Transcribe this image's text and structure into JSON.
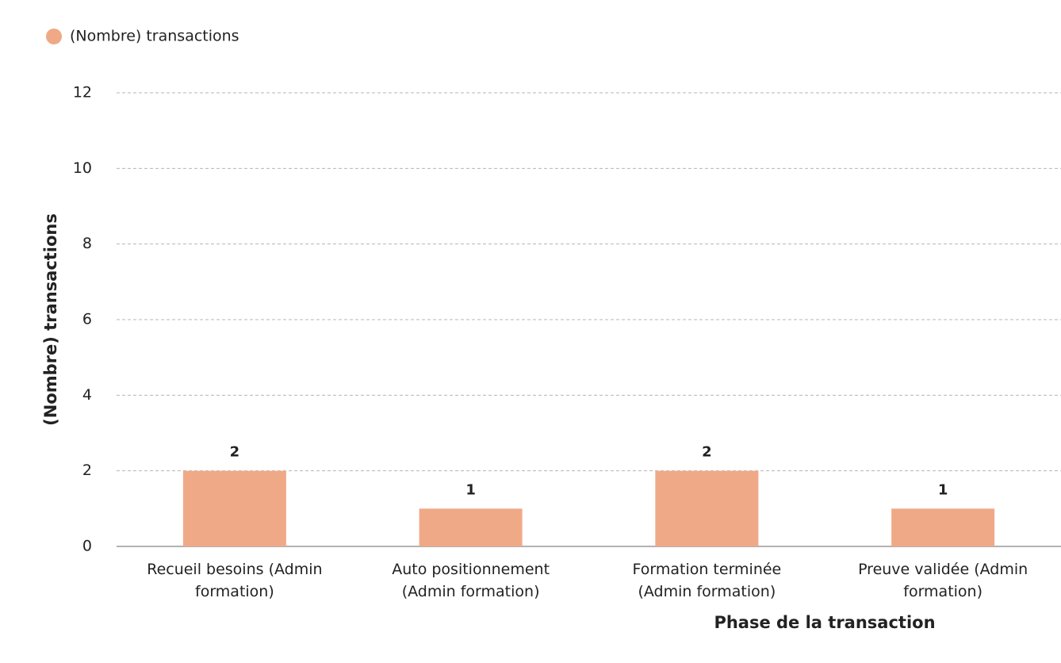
{
  "chart_data": {
    "type": "bar",
    "categories": [
      "Recueil besoins (Admin formation)",
      "Auto positionnement (Admin formation)",
      "Formation terminée (Admin formation)",
      "Preuve validée (Admin formation)"
    ],
    "series": [
      {
        "name": "(Nombre) transactions",
        "color": "#f0a987",
        "values": [
          2,
          1,
          2,
          1
        ]
      }
    ],
    "y_label": "(Nombre) transactions",
    "x_label": "Phase de la transaction",
    "ylim": [
      0,
      12
    ],
    "yticks": [
      0,
      2,
      4,
      6,
      8,
      10,
      12
    ],
    "grid": true,
    "legend": "top-left"
  }
}
